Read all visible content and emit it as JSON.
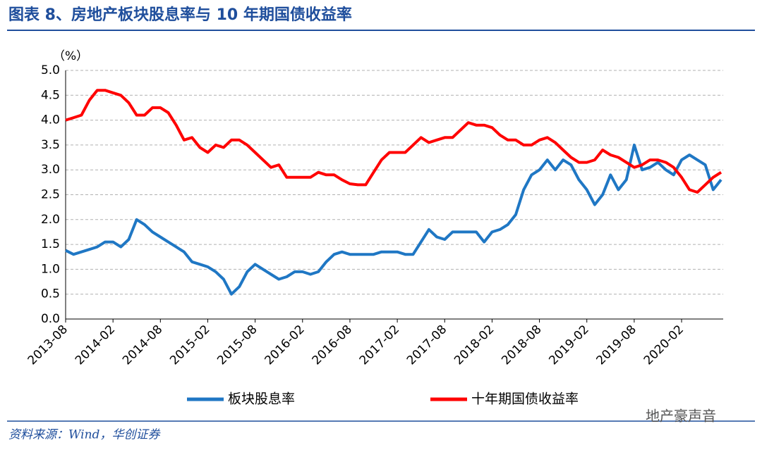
{
  "chart_data": {
    "type": "line",
    "title": "图表 8、房地产板块股息率与 10 年期国债收益率",
    "y_label": "（%）",
    "source": "资料来源：Wind，华创证券",
    "watermark": "地产豪声音",
    "categories": [
      "2013-08",
      null,
      null,
      null,
      null,
      null,
      "2014-02",
      null,
      null,
      null,
      null,
      null,
      "2014-08",
      null,
      null,
      null,
      null,
      null,
      "2015-02",
      null,
      null,
      null,
      null,
      null,
      "2015-08",
      null,
      null,
      null,
      null,
      null,
      "2016-02",
      null,
      null,
      null,
      null,
      null,
      "2016-08",
      null,
      null,
      null,
      null,
      null,
      "2017-02",
      null,
      null,
      null,
      null,
      null,
      "2017-08",
      null,
      null,
      null,
      null,
      null,
      "2018-02",
      null,
      null,
      null,
      null,
      null,
      "2018-08",
      null,
      null,
      null,
      null,
      null,
      "2019-02",
      null,
      null,
      null,
      null,
      null,
      "2019-08",
      null,
      null,
      null,
      null,
      null,
      "2020-02",
      null,
      null,
      null,
      null,
      null
    ],
    "series": [
      {
        "name": "板块股息率",
        "color": "#1f77c4",
        "values": [
          1.38,
          1.3,
          1.35,
          1.4,
          1.45,
          1.55,
          1.55,
          1.45,
          1.6,
          2.0,
          1.9,
          1.75,
          1.65,
          1.55,
          1.45,
          1.35,
          1.15,
          1.1,
          1.05,
          0.95,
          0.8,
          0.5,
          0.65,
          0.95,
          1.1,
          1.0,
          0.9,
          0.8,
          0.85,
          0.95,
          0.95,
          0.9,
          0.95,
          1.15,
          1.3,
          1.35,
          1.3,
          1.3,
          1.3,
          1.3,
          1.35,
          1.35,
          1.35,
          1.3,
          1.3,
          1.55,
          1.8,
          1.65,
          1.6,
          1.75,
          1.75,
          1.75,
          1.75,
          1.55,
          1.75,
          1.8,
          1.9,
          2.1,
          2.6,
          2.9,
          3.0,
          3.2,
          3.0,
          3.2,
          3.1,
          2.8,
          2.6,
          2.3,
          2.5,
          2.9,
          2.6,
          2.8,
          3.5,
          3.0,
          3.05,
          3.15,
          3.0,
          2.9,
          3.2,
          3.3,
          3.2,
          3.1,
          2.6,
          2.8
        ]
      },
      {
        "name": "十年期国债收益率",
        "color": "#ff0000",
        "values": [
          4.0,
          4.05,
          4.1,
          4.4,
          4.6,
          4.6,
          4.55,
          4.5,
          4.35,
          4.1,
          4.1,
          4.25,
          4.25,
          4.15,
          3.9,
          3.6,
          3.65,
          3.45,
          3.35,
          3.5,
          3.45,
          3.6,
          3.6,
          3.5,
          3.35,
          3.2,
          3.05,
          3.1,
          2.85,
          2.85,
          2.85,
          2.85,
          2.95,
          2.9,
          2.9,
          2.8,
          2.72,
          2.7,
          2.7,
          2.95,
          3.2,
          3.35,
          3.35,
          3.35,
          3.5,
          3.65,
          3.55,
          3.6,
          3.65,
          3.65,
          3.8,
          3.95,
          3.9,
          3.9,
          3.85,
          3.7,
          3.6,
          3.6,
          3.5,
          3.5,
          3.6,
          3.65,
          3.55,
          3.4,
          3.25,
          3.15,
          3.15,
          3.2,
          3.4,
          3.3,
          3.25,
          3.15,
          3.05,
          3.1,
          3.2,
          3.2,
          3.15,
          3.05,
          2.85,
          2.6,
          2.55,
          2.7,
          2.85,
          2.95
        ]
      }
    ],
    "ylim": [
      0,
      5
    ],
    "yticks": [
      {
        "value": 0,
        "label": "0.0"
      },
      0.5,
      {
        "value": 1,
        "label": "1.0"
      },
      1.5,
      {
        "value": 2,
        "label": "2.0"
      },
      2.5,
      {
        "value": 3,
        "label": "3.0"
      },
      3.5,
      {
        "value": 4,
        "label": "4.0"
      },
      4.5,
      {
        "value": 5,
        "label": "5.0"
      }
    ],
    "grid": true,
    "legend": "bottom"
  }
}
